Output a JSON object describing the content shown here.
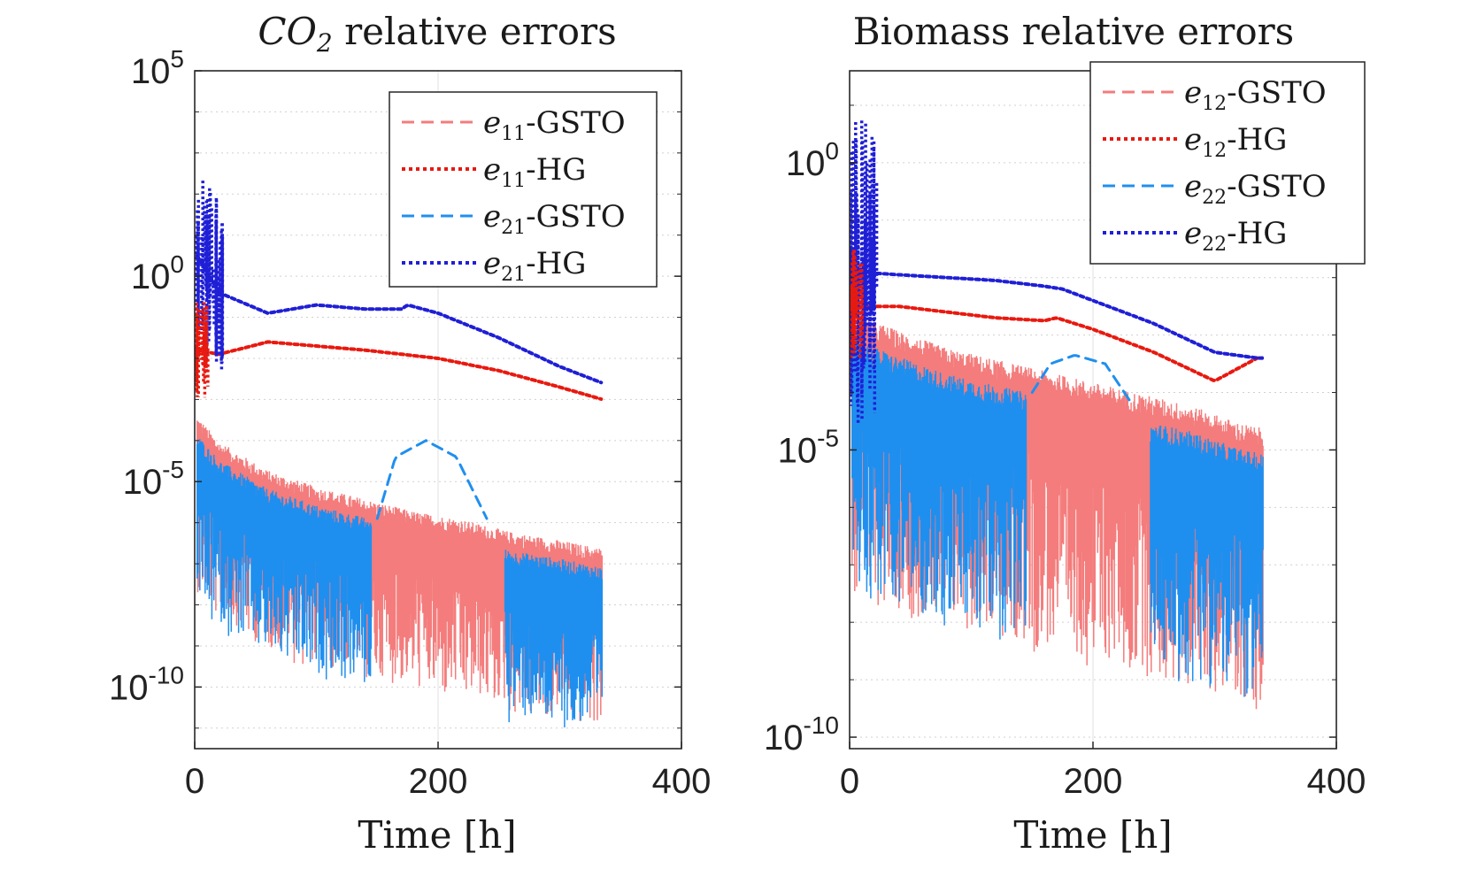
{
  "chart_data": [
    {
      "type": "line",
      "title": "CO2 relative errors",
      "title_base": "CO",
      "title_sub": "2",
      "title_rest": " relative errors",
      "xlabel": "Time [h]",
      "ylabel": "",
      "yscale": "log",
      "xlim": [
        0,
        400
      ],
      "ylim_exp": [
        -11.5,
        5
      ],
      "xticks": [
        0,
        200,
        400
      ],
      "xtick_labels": [
        "0",
        "200",
        "400"
      ],
      "yticks_exp": [
        5,
        0,
        -5,
        -10
      ],
      "ytick_labels": [
        {
          "base": "10",
          "exp": "5"
        },
        {
          "base": "10",
          "exp": "0"
        },
        {
          "base": "10",
          "exp": "-5"
        },
        {
          "base": "10",
          "exp": "-10"
        }
      ],
      "grid": true,
      "legend_position": "top-right",
      "legend": [
        {
          "var": "e",
          "sub": "11",
          "suffix": "-GSTO",
          "color": "#f47c7c",
          "style": "dashed"
        },
        {
          "var": "e",
          "sub": "11",
          "suffix": "-HG",
          "color": "#e8190f",
          "style": "dotted"
        },
        {
          "var": "e",
          "sub": "21",
          "suffix": "-GSTO",
          "color": "#1f8fef",
          "style": "dashed"
        },
        {
          "var": "e",
          "sub": "21",
          "suffix": "-HG",
          "color": "#1f1fd6",
          "style": "dotted"
        }
      ],
      "series": [
        {
          "name": "e11-GSTO",
          "x": [
            0,
            20,
            60,
            100,
            140,
            180,
            220,
            260,
            300,
            335
          ],
          "y_exp": [
            -3.5,
            -4.2,
            -4.9,
            -5.3,
            -5.6,
            -5.9,
            -6.1,
            -6.4,
            -6.6,
            -6.8
          ]
        },
        {
          "name": "e11-HG",
          "x": [
            2,
            20,
            60,
            100,
            140,
            170,
            200,
            250,
            300,
            335
          ],
          "y_exp": [
            -1.8,
            -1.9,
            -1.6,
            -1.7,
            -1.8,
            -1.9,
            -2.0,
            -2.3,
            -2.7,
            -3.0
          ]
        },
        {
          "name": "e21-GSTO",
          "x": [
            150,
            165,
            190,
            215,
            240
          ],
          "y_exp": [
            -5.9,
            -4.4,
            -4.0,
            -4.4,
            -5.9
          ]
        },
        {
          "name": "e21-HG",
          "x": [
            2,
            20,
            60,
            100,
            140,
            170,
            175,
            200,
            250,
            300,
            335
          ],
          "y_exp": [
            0.5,
            -0.4,
            -0.9,
            -0.7,
            -0.8,
            -0.8,
            -0.7,
            -0.9,
            -1.5,
            -2.2,
            -2.6
          ]
        }
      ]
    },
    {
      "type": "line",
      "title": "Biomass relative errors",
      "xlabel": "Time [h]",
      "ylabel": "",
      "yscale": "log",
      "xlim": [
        0,
        400
      ],
      "ylim_exp": [
        -10.2,
        1.6
      ],
      "xticks": [
        0,
        200,
        400
      ],
      "xtick_labels": [
        "0",
        "200",
        "400"
      ],
      "yticks_exp": [
        0,
        -5,
        -10
      ],
      "ytick_labels": [
        {
          "base": "10",
          "exp": "0"
        },
        {
          "base": "10",
          "exp": "-5"
        },
        {
          "base": "10",
          "exp": "-10"
        }
      ],
      "grid": true,
      "legend_position": "top-right",
      "legend": [
        {
          "var": "e",
          "sub": "12",
          "suffix": "-GSTO",
          "color": "#f47c7c",
          "style": "dashed"
        },
        {
          "var": "e",
          "sub": "12",
          "suffix": "-HG",
          "color": "#e8190f",
          "style": "dotted"
        },
        {
          "var": "e",
          "sub": "22",
          "suffix": "-GSTO",
          "color": "#1f8fef",
          "style": "dashed"
        },
        {
          "var": "e",
          "sub": "22",
          "suffix": "-HG",
          "color": "#1f1fd6",
          "style": "dotted"
        }
      ],
      "series": [
        {
          "name": "e12-GSTO",
          "x": [
            5,
            40,
            80,
            120,
            160,
            200,
            240,
            280,
            320,
            340
          ],
          "y_exp": [
            -2.8,
            -3.1,
            -3.4,
            -3.6,
            -3.8,
            -4.0,
            -4.2,
            -4.4,
            -4.7,
            -4.8
          ]
        },
        {
          "name": "e12-HG",
          "x": [
            5,
            40,
            80,
            120,
            160,
            170,
            200,
            250,
            300,
            335
          ],
          "y_exp": [
            -2.5,
            -2.5,
            -2.6,
            -2.7,
            -2.75,
            -2.7,
            -2.9,
            -3.3,
            -3.8,
            -3.4
          ]
        },
        {
          "name": "e22-GSTO",
          "x": [
            150,
            165,
            185,
            210,
            232
          ],
          "y_exp": [
            -4.0,
            -3.5,
            -3.35,
            -3.5,
            -4.2
          ]
        },
        {
          "name": "e22-HG",
          "x": [
            5,
            40,
            80,
            120,
            160,
            175,
            200,
            250,
            300,
            335
          ],
          "y_exp": [
            -1.9,
            -1.95,
            -2.0,
            -2.05,
            -2.15,
            -2.2,
            -2.4,
            -2.8,
            -3.3,
            -3.4
          ]
        }
      ]
    }
  ]
}
